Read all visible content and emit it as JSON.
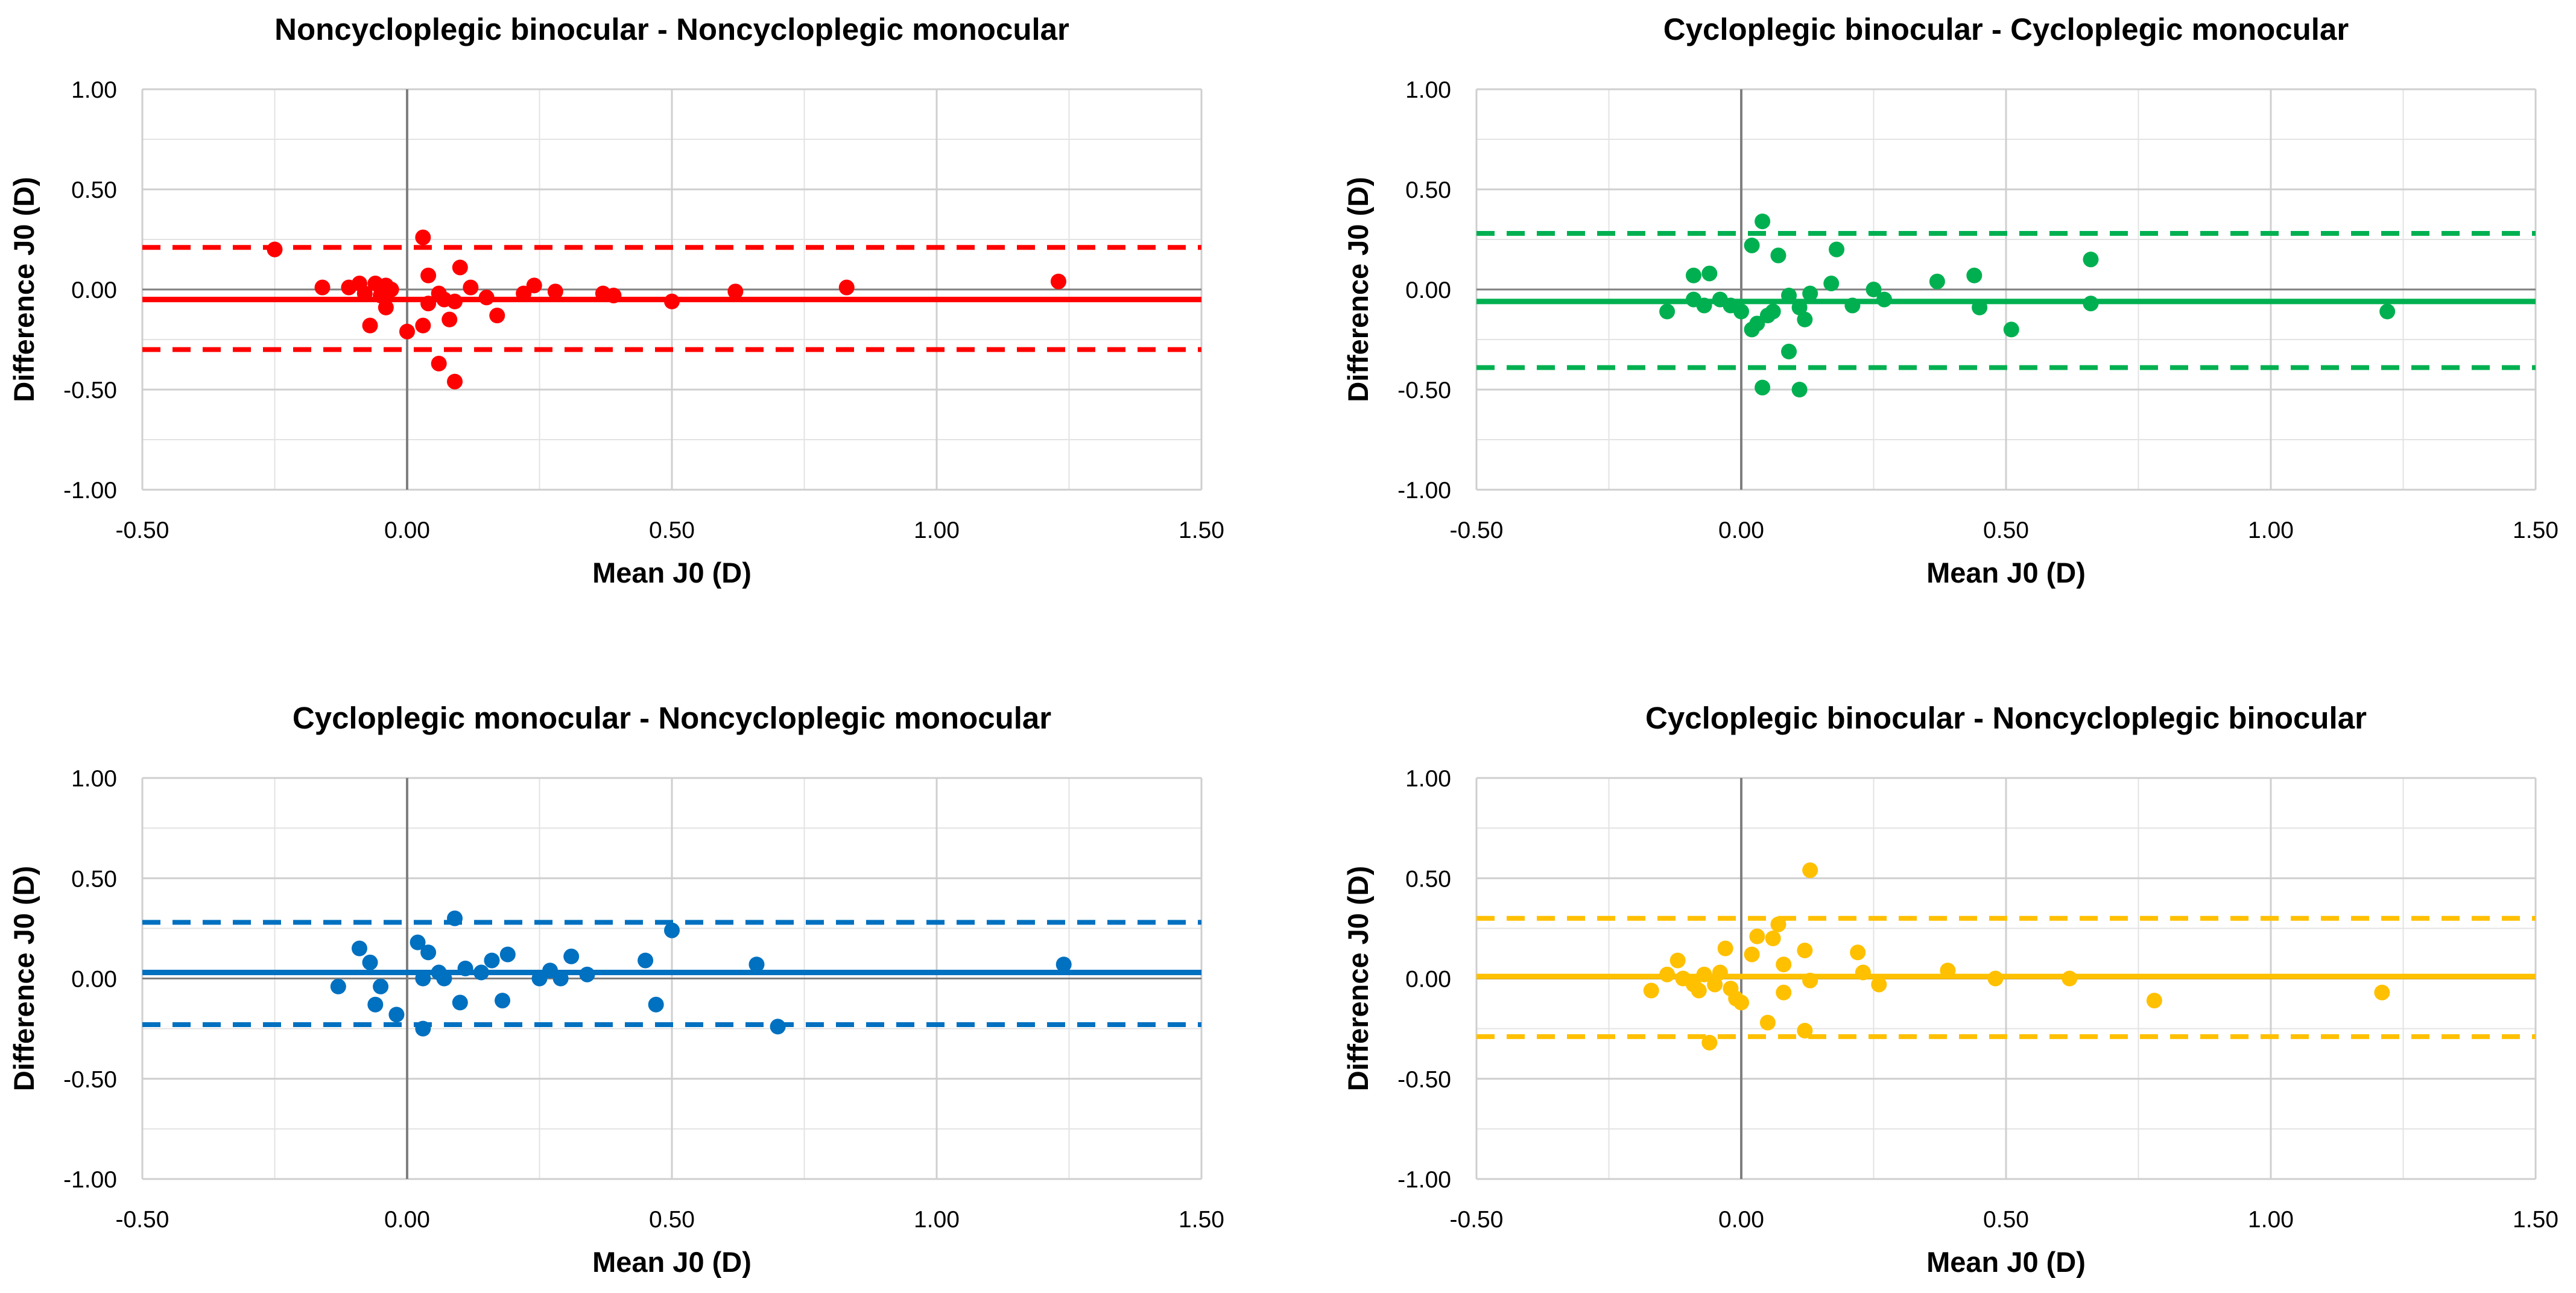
{
  "chart_data": [
    {
      "type": "scatter",
      "title": "Noncycloplegic binocular - Noncycloplegic monocular",
      "xlabel": "Mean J0 (D)",
      "ylabel": "Difference J0 (D)",
      "xlim": [
        -0.5,
        1.5
      ],
      "ylim": [
        -1.0,
        1.0
      ],
      "xticks": [
        "-0.50",
        "0.00",
        "0.50",
        "1.00",
        "1.50"
      ],
      "yticks": [
        "1.00",
        "0.50",
        "0.00",
        "-0.50",
        "-1.00"
      ],
      "grid": true,
      "color": "#FF0000",
      "mean_diff": -0.05,
      "upper_loa": 0.21,
      "lower_loa": -0.3,
      "points": [
        [
          -0.25,
          0.2
        ],
        [
          -0.16,
          0.01
        ],
        [
          -0.11,
          0.01
        ],
        [
          -0.09,
          0.03
        ],
        [
          -0.08,
          -0.02
        ],
        [
          -0.07,
          -0.18
        ],
        [
          -0.06,
          0.03
        ],
        [
          -0.05,
          -0.03
        ],
        [
          -0.04,
          0.02
        ],
        [
          -0.04,
          -0.09
        ],
        [
          -0.03,
          0.0
        ],
        [
          0.0,
          -0.21
        ],
        [
          0.03,
          -0.18
        ],
        [
          0.03,
          0.26
        ],
        [
          0.04,
          0.07
        ],
        [
          0.04,
          -0.07
        ],
        [
          0.06,
          -0.37
        ],
        [
          0.06,
          -0.02
        ],
        [
          0.07,
          -0.05
        ],
        [
          0.08,
          -0.15
        ],
        [
          0.09,
          -0.46
        ],
        [
          0.09,
          -0.06
        ],
        [
          0.1,
          0.11
        ],
        [
          0.12,
          0.01
        ],
        [
          0.15,
          -0.04
        ],
        [
          0.17,
          -0.13
        ],
        [
          0.22,
          -0.02
        ],
        [
          0.24,
          0.02
        ],
        [
          0.28,
          -0.01
        ],
        [
          0.37,
          -0.02
        ],
        [
          0.39,
          -0.03
        ],
        [
          0.5,
          -0.06
        ],
        [
          0.62,
          -0.01
        ],
        [
          0.83,
          0.01
        ],
        [
          1.23,
          0.04
        ]
      ]
    },
    {
      "type": "scatter",
      "title": "Cycloplegic binocular - Cycloplegic monocular",
      "xlabel": "Mean J0 (D)",
      "ylabel": "Difference J0 (D)",
      "xlim": [
        -0.5,
        1.5
      ],
      "ylim": [
        -1.0,
        1.0
      ],
      "xticks": [
        "-0.50",
        "0.00",
        "0.50",
        "1.00",
        "1.50"
      ],
      "yticks": [
        "1.00",
        "0.50",
        "0.00",
        "-0.50",
        "-1.00"
      ],
      "grid": true,
      "color": "#00B050",
      "mean_diff": -0.06,
      "upper_loa": 0.28,
      "lower_loa": -0.39,
      "points": [
        [
          -0.14,
          -0.11
        ],
        [
          -0.09,
          0.07
        ],
        [
          -0.09,
          -0.05
        ],
        [
          -0.07,
          -0.08
        ],
        [
          -0.06,
          0.08
        ],
        [
          -0.04,
          -0.05
        ],
        [
          -0.02,
          -0.08
        ],
        [
          0.0,
          -0.11
        ],
        [
          0.02,
          0.22
        ],
        [
          0.02,
          -0.2
        ],
        [
          0.03,
          -0.17
        ],
        [
          0.04,
          0.34
        ],
        [
          0.04,
          -0.49
        ],
        [
          0.05,
          -0.13
        ],
        [
          0.06,
          -0.11
        ],
        [
          0.07,
          0.17
        ],
        [
          0.09,
          -0.31
        ],
        [
          0.09,
          -0.03
        ],
        [
          0.11,
          -0.09
        ],
        [
          0.11,
          -0.5
        ],
        [
          0.12,
          -0.15
        ],
        [
          0.13,
          -0.02
        ],
        [
          0.17,
          0.03
        ],
        [
          0.18,
          0.2
        ],
        [
          0.21,
          -0.08
        ],
        [
          0.25,
          0.0
        ],
        [
          0.27,
          -0.05
        ],
        [
          0.37,
          0.04
        ],
        [
          0.44,
          0.07
        ],
        [
          0.45,
          -0.09
        ],
        [
          0.51,
          -0.2
        ],
        [
          0.66,
          0.15
        ],
        [
          0.66,
          -0.07
        ],
        [
          1.22,
          -0.11
        ]
      ]
    },
    {
      "type": "scatter",
      "title": "Cycloplegic monocular - Noncycloplegic monocular",
      "xlabel": "Mean J0 (D)",
      "ylabel": "Difference J0 (D)",
      "xlim": [
        -0.5,
        1.5
      ],
      "ylim": [
        -1.0,
        1.0
      ],
      "xticks": [
        "-0.50",
        "0.00",
        "0.50",
        "1.00",
        "1.50"
      ],
      "yticks": [
        "1.00",
        "0.50",
        "0.00",
        "-0.50",
        "-1.00"
      ],
      "grid": true,
      "color": "#0070C0",
      "mean_diff": 0.03,
      "upper_loa": 0.28,
      "lower_loa": -0.23,
      "points": [
        [
          -0.13,
          -0.04
        ],
        [
          -0.09,
          0.15
        ],
        [
          -0.07,
          0.08
        ],
        [
          -0.06,
          -0.13
        ],
        [
          -0.05,
          -0.04
        ],
        [
          -0.02,
          -0.18
        ],
        [
          0.02,
          0.18
        ],
        [
          0.03,
          0.0
        ],
        [
          0.03,
          -0.25
        ],
        [
          0.04,
          0.13
        ],
        [
          0.06,
          0.03
        ],
        [
          0.07,
          0.0
        ],
        [
          0.09,
          0.3
        ],
        [
          0.1,
          -0.12
        ],
        [
          0.11,
          0.05
        ],
        [
          0.14,
          0.03
        ],
        [
          0.16,
          0.09
        ],
        [
          0.18,
          -0.11
        ],
        [
          0.19,
          0.12
        ],
        [
          0.25,
          0.0
        ],
        [
          0.27,
          0.04
        ],
        [
          0.29,
          0.0
        ],
        [
          0.31,
          0.11
        ],
        [
          0.34,
          0.02
        ],
        [
          0.45,
          0.09
        ],
        [
          0.47,
          -0.13
        ],
        [
          0.5,
          0.24
        ],
        [
          0.66,
          0.07
        ],
        [
          0.7,
          -0.24
        ],
        [
          1.24,
          0.07
        ]
      ]
    },
    {
      "type": "scatter",
      "title": "Cycloplegic binocular - Noncycloplegic binocular",
      "xlabel": "Mean J0 (D)",
      "ylabel": "Difference J0 (D)",
      "xlim": [
        -0.5,
        1.5
      ],
      "ylim": [
        -1.0,
        1.0
      ],
      "xticks": [
        "-0.50",
        "0.00",
        "0.50",
        "1.00",
        "1.50"
      ],
      "yticks": [
        "1.00",
        "0.50",
        "0.00",
        "-0.50",
        "-1.00"
      ],
      "grid": true,
      "color": "#FFC000",
      "mean_diff": 0.01,
      "upper_loa": 0.3,
      "lower_loa": -0.29,
      "points": [
        [
          -0.17,
          -0.06
        ],
        [
          -0.14,
          0.02
        ],
        [
          -0.12,
          0.09
        ],
        [
          -0.11,
          0.0
        ],
        [
          -0.09,
          -0.03
        ],
        [
          -0.08,
          -0.06
        ],
        [
          -0.07,
          0.02
        ],
        [
          -0.06,
          -0.32
        ],
        [
          -0.05,
          -0.03
        ],
        [
          -0.04,
          0.03
        ],
        [
          -0.03,
          0.15
        ],
        [
          -0.02,
          -0.05
        ],
        [
          -0.01,
          -0.1
        ],
        [
          0.0,
          -0.12
        ],
        [
          0.02,
          0.12
        ],
        [
          0.03,
          0.21
        ],
        [
          0.05,
          -0.22
        ],
        [
          0.06,
          0.2
        ],
        [
          0.07,
          0.27
        ],
        [
          0.08,
          -0.07
        ],
        [
          0.08,
          0.07
        ],
        [
          0.12,
          0.14
        ],
        [
          0.12,
          -0.26
        ],
        [
          0.13,
          0.54
        ],
        [
          0.13,
          -0.01
        ],
        [
          0.22,
          0.13
        ],
        [
          0.23,
          0.03
        ],
        [
          0.26,
          -0.03
        ],
        [
          0.39,
          0.04
        ],
        [
          0.48,
          0.0
        ],
        [
          0.62,
          0.0
        ],
        [
          0.78,
          -0.11
        ],
        [
          1.21,
          -0.07
        ]
      ]
    }
  ]
}
